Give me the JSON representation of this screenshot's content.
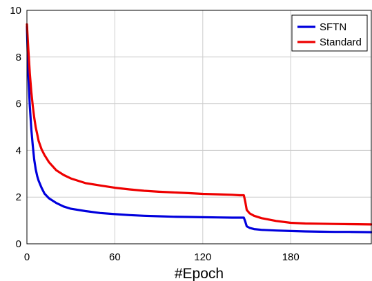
{
  "chart_data": {
    "type": "line",
    "title": "",
    "xlabel": "#Epoch",
    "ylabel": "",
    "xlim": [
      0,
      235
    ],
    "ylim": [
      0,
      10
    ],
    "x_ticks": [
      0,
      60,
      120,
      180
    ],
    "y_ticks": [
      0,
      2,
      4,
      6,
      8,
      10
    ],
    "grid": true,
    "legend_position": "top-right",
    "series": [
      {
        "name": "SFTN",
        "color": "#0000dd",
        "x": [
          0,
          1,
          2,
          3,
          4,
          5,
          6,
          7,
          8,
          10,
          12,
          15,
          20,
          25,
          30,
          40,
          50,
          60,
          70,
          80,
          90,
          100,
          110,
          120,
          130,
          140,
          148,
          149,
          150,
          152,
          155,
          160,
          170,
          180,
          190,
          200,
          210,
          220,
          235
        ],
        "values": [
          9.3,
          7.2,
          5.9,
          4.9,
          4.2,
          3.6,
          3.2,
          2.9,
          2.7,
          2.4,
          2.15,
          1.95,
          1.75,
          1.6,
          1.5,
          1.4,
          1.32,
          1.27,
          1.23,
          1.2,
          1.18,
          1.16,
          1.15,
          1.14,
          1.13,
          1.12,
          1.12,
          0.95,
          0.75,
          0.68,
          0.63,
          0.6,
          0.57,
          0.55,
          0.53,
          0.52,
          0.51,
          0.51,
          0.5
        ]
      },
      {
        "name": "Standard",
        "color": "#ee0000",
        "x": [
          0,
          1,
          2,
          3,
          4,
          5,
          6,
          7,
          8,
          10,
          12,
          15,
          20,
          25,
          30,
          40,
          50,
          60,
          70,
          80,
          90,
          100,
          110,
          120,
          130,
          140,
          145,
          148,
          149,
          150,
          152,
          155,
          160,
          170,
          180,
          190,
          200,
          210,
          220,
          235
        ],
        "values": [
          9.4,
          8.3,
          7.3,
          6.5,
          5.9,
          5.4,
          5.0,
          4.7,
          4.4,
          4.05,
          3.8,
          3.5,
          3.15,
          2.95,
          2.8,
          2.6,
          2.5,
          2.4,
          2.33,
          2.27,
          2.23,
          2.2,
          2.17,
          2.14,
          2.12,
          2.1,
          2.08,
          2.08,
          1.8,
          1.45,
          1.3,
          1.2,
          1.1,
          0.98,
          0.9,
          0.87,
          0.86,
          0.85,
          0.84,
          0.83
        ]
      }
    ]
  }
}
